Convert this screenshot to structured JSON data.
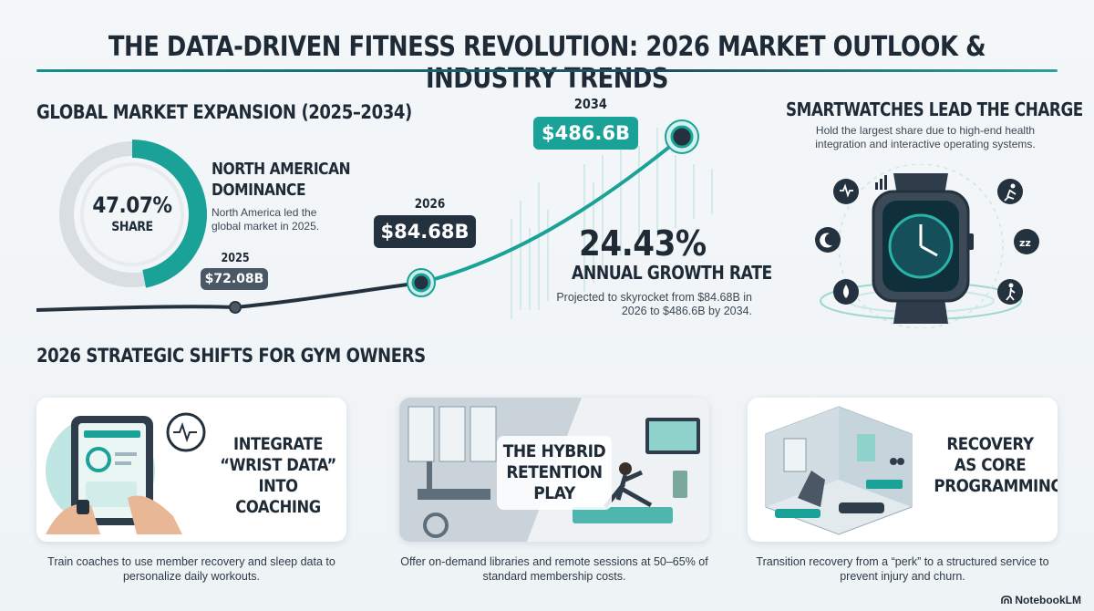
{
  "title": "THE DATA-DRIVEN FITNESS REVOLUTION: 2026 MARKET OUTLOOK & INDUSTRY TRENDS",
  "global": {
    "heading": "GLOBAL MARKET EXPANSION (2025–2034)",
    "donut": {
      "percent": "47.07%",
      "label": "SHARE",
      "share_value": 47.07
    },
    "north_america": {
      "heading": "NORTH AMERICAN DOMINANCE",
      "text": "North America led the global market in 2025."
    },
    "points": [
      {
        "year": "2025",
        "value": "$72.08B"
      },
      {
        "year": "2026",
        "value": "$84.68B"
      },
      {
        "year": "2034",
        "value": "$486.6B"
      }
    ],
    "growth": {
      "rate": "24.43%",
      "label": "ANNUAL GROWTH RATE",
      "text": "Projected to skyrocket from $84.68B in 2026 to $486.6B by 2034."
    }
  },
  "smartwatch": {
    "heading": "SMARTWATCHES LEAD THE CHARGE",
    "text": "Hold the largest share due to high-end health integration and interactive operating systems."
  },
  "shifts": {
    "heading": "2026 STRATEGIC SHIFTS FOR GYM OWNERS",
    "cards": [
      {
        "title": "INTEGRATE “WRIST DATA” INTO COACHING",
        "caption": "Train coaches to use member recovery and sleep data to personalize daily workouts."
      },
      {
        "title": "THE HYBRID RETENTION PLAY",
        "caption": "Offer on-demand libraries and remote sessions at 50–65% of standard membership costs."
      },
      {
        "title": "RECOVERY AS CORE PROGRAMMING",
        "caption": "Transition recovery from a “perk” to a structured service to prevent injury and churn."
      }
    ]
  },
  "brand": "NotebookLM",
  "colors": {
    "teal": "#1aa198",
    "navy": "#24313e",
    "slate": "#4a5866"
  }
}
